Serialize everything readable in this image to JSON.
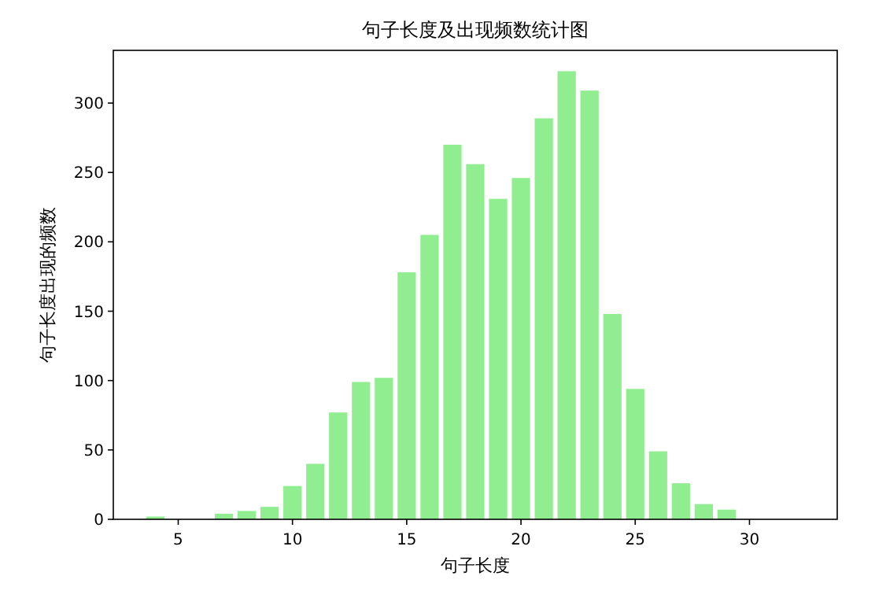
{
  "chart_data": {
    "type": "bar",
    "title": "句子长度及出现频数统计图",
    "xlabel": "句子长度",
    "ylabel": "句子长度出现的频数",
    "x": [
      4,
      5,
      6,
      7,
      8,
      9,
      10,
      11,
      12,
      13,
      14,
      15,
      16,
      17,
      18,
      19,
      20,
      21,
      22,
      23,
      24,
      25,
      26,
      27,
      28,
      29,
      30,
      31,
      32
    ],
    "values": [
      2,
      0,
      0,
      4,
      6,
      9,
      24,
      40,
      77,
      99,
      102,
      178,
      205,
      270,
      256,
      231,
      246,
      289,
      323,
      309,
      148,
      94,
      49,
      26,
      11,
      7,
      0,
      0,
      0
    ],
    "color": "#90ee90",
    "xlim": [
      2.16,
      33.84
    ],
    "ylim": [
      0,
      338
    ],
    "xticks": [
      5,
      10,
      15,
      20,
      25,
      30
    ],
    "yticks": [
      0,
      50,
      100,
      150,
      200,
      250,
      300
    ],
    "grid": false
  }
}
